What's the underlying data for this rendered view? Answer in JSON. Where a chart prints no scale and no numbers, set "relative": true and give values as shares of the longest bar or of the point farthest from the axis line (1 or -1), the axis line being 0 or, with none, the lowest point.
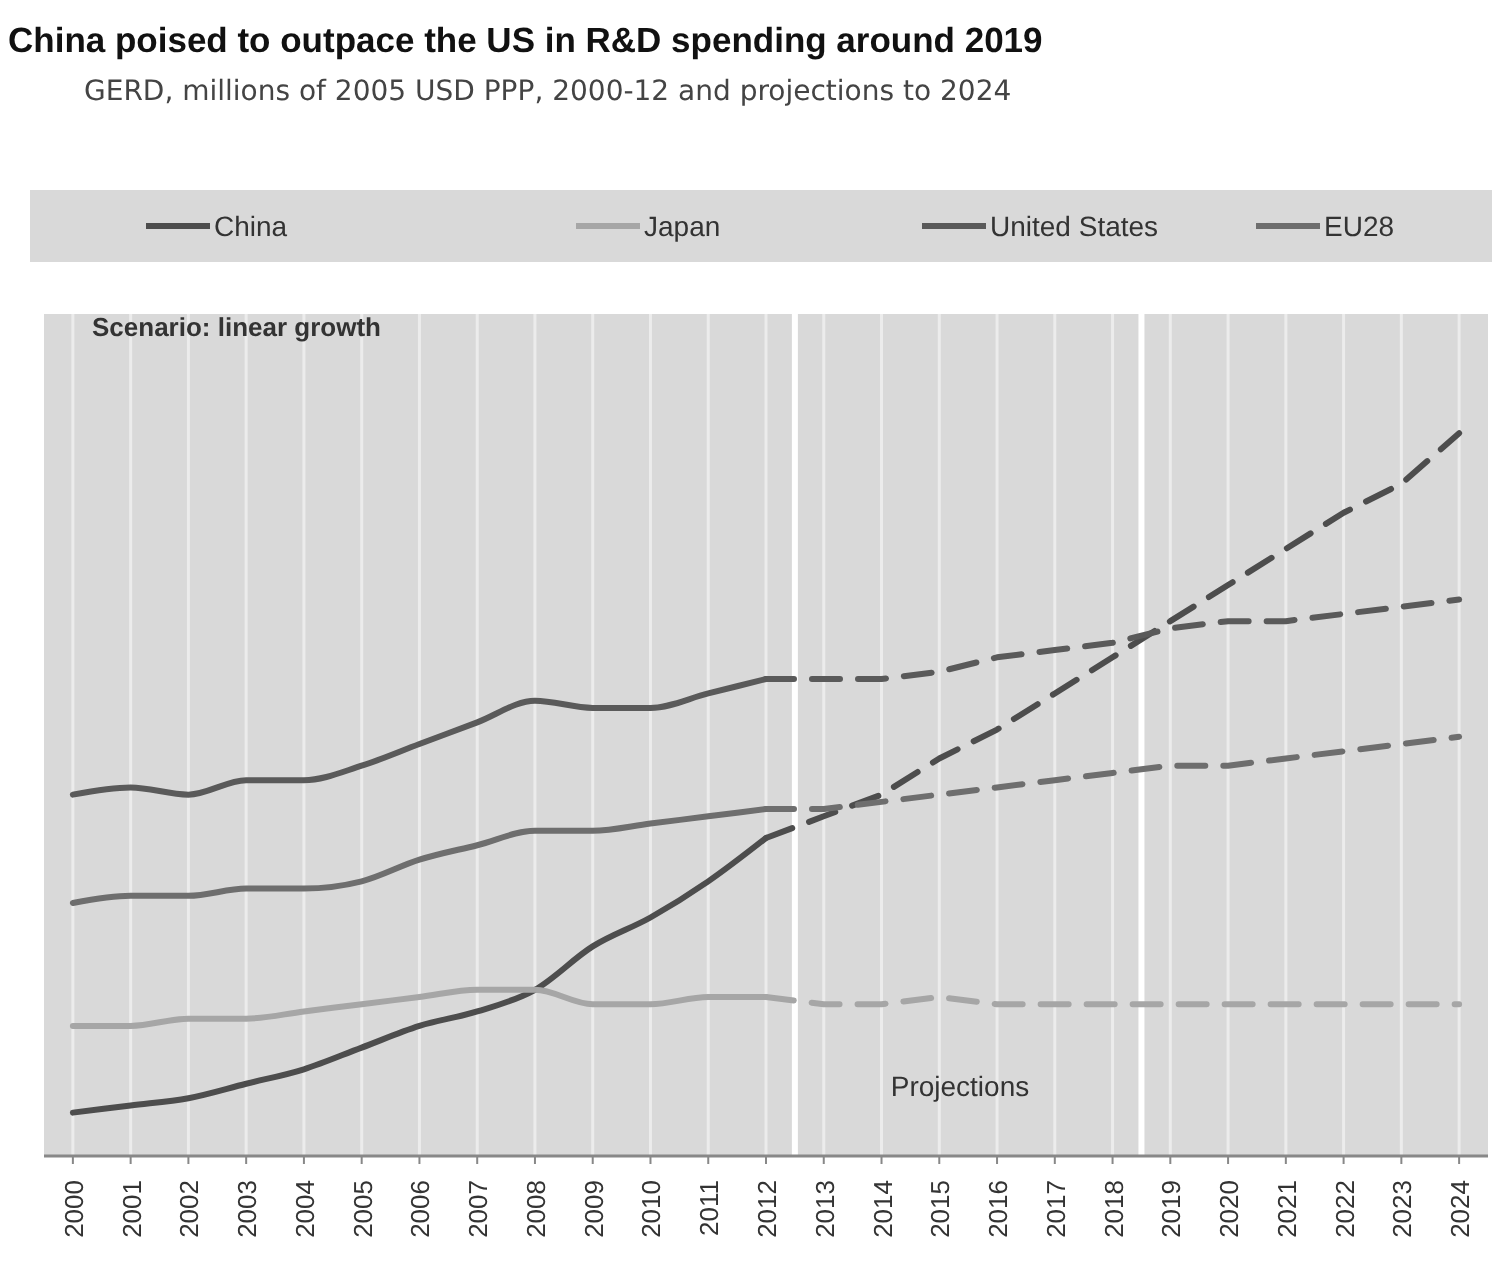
{
  "chart_data": {
    "type": "line",
    "title": "China poised to outpace the US in R&D spending around 2019",
    "subtitle": "GERD, millions of 2005 USD PPP, 2000-12 and projections to 2024",
    "relative": true,
    "x": [
      2000,
      2001,
      2002,
      2003,
      2004,
      2005,
      2006,
      2007,
      2008,
      2009,
      2010,
      2011,
      2012
    ],
    "xlim": [
      1999.5,
      2024.5
    ],
    "xticks": [
      2000,
      2001,
      2002,
      2003,
      2004,
      2005,
      2006,
      2007,
      2008,
      2009,
      2010,
      2011,
      2012,
      2013,
      2014,
      2015,
      2016,
      2017,
      2018,
      2019,
      2020,
      2021,
      2022,
      2023,
      2024
    ],
    "series": [
      {
        "name": "China",
        "color": "#4d4d4d",
        "values": [
          0.06,
          0.07,
          0.08,
          0.1,
          0.12,
          0.15,
          0.18,
          0.2,
          0.23,
          0.29,
          0.33,
          0.38,
          0.44
        ]
      },
      {
        "name": "Japan",
        "color": "#a6a6a6",
        "values": [
          0.18,
          0.18,
          0.19,
          0.19,
          0.2,
          0.21,
          0.22,
          0.23,
          0.23,
          0.21,
          0.21,
          0.22,
          0.22
        ]
      },
      {
        "name": "United States",
        "color": "#5a5a5a",
        "values": [
          0.5,
          0.51,
          0.5,
          0.52,
          0.52,
          0.54,
          0.57,
          0.6,
          0.63,
          0.62,
          0.62,
          0.64,
          0.66
        ]
      },
      {
        "name": "EU28",
        "color": "#6e6e6e",
        "values": [
          0.35,
          0.36,
          0.36,
          0.37,
          0.37,
          0.38,
          0.41,
          0.43,
          0.45,
          0.45,
          0.46,
          0.47,
          0.48
        ]
      },
      {
        "color": "#4d4d4d",
        "line_style": "dashed",
        "x": [
          2012,
          2013,
          2014,
          2015,
          2016,
          2017,
          2018,
          2019,
          2020,
          2021,
          2022,
          2023,
          2024
        ],
        "values": [
          0.44,
          0.47,
          0.5,
          0.55,
          0.59,
          0.64,
          0.69,
          0.74,
          0.79,
          0.84,
          0.89,
          0.93,
          1
        ]
      },
      {
        "color": "#a6a6a6",
        "line_style": "dashed",
        "x": [
          2012,
          2013,
          2014,
          2015,
          2016,
          2017,
          2018,
          2019,
          2020,
          2021,
          2022,
          2023,
          2024
        ],
        "values": [
          0.22,
          0.21,
          0.21,
          0.22,
          0.21,
          0.21,
          0.21,
          0.21,
          0.21,
          0.21,
          0.21,
          0.21,
          0.21
        ]
      },
      {
        "color": "#5a5a5a",
        "line_style": "dashed",
        "x": [
          2012,
          2013,
          2014,
          2015,
          2016,
          2017,
          2018,
          2019,
          2020,
          2021,
          2022,
          2023,
          2024
        ],
        "values": [
          0.66,
          0.66,
          0.66,
          0.67,
          0.69,
          0.7,
          0.71,
          0.73,
          0.74,
          0.74,
          0.75,
          0.76,
          0.77
        ]
      },
      {
        "color": "#6e6e6e",
        "line_style": "dashed",
        "x": [
          2012,
          2013,
          2014,
          2015,
          2016,
          2017,
          2018,
          2019,
          2020,
          2021,
          2022,
          2023,
          2024
        ],
        "values": [
          0.48,
          0.48,
          0.49,
          0.5,
          0.51,
          0.52,
          0.53,
          0.54,
          0.54,
          0.55,
          0.56,
          0.57,
          0.58
        ]
      }
    ],
    "ref_lines": [
      {
        "axis": "x",
        "value": 2012.5,
        "color": "#ffffff"
      },
      {
        "axis": "x",
        "value": 2018.5,
        "color": "#ffffff"
      }
    ],
    "annotations": [
      "Scenario: linear growth",
      "Projections"
    ],
    "grid": "x",
    "legend": "top",
    "line_style": "solid",
    "marker": "none"
  }
}
